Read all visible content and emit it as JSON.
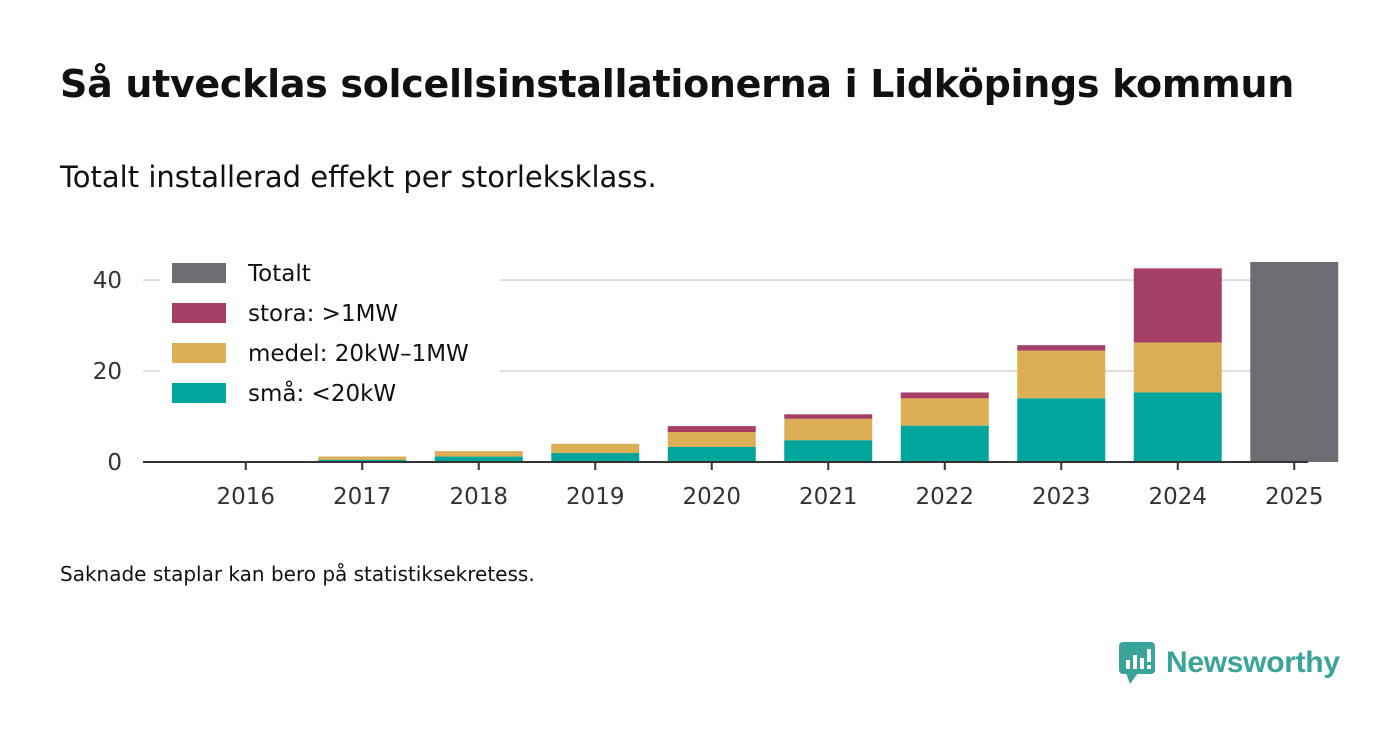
{
  "title": "Så utvecklas solcellsinstallationerna i Lidköpings kommun",
  "subtitle": "Totalt installerad effekt per storleksklass.",
  "note": "Saknade staplar kan bero på statistiksekretess.",
  "brand": {
    "name": "Newsworthy",
    "color": "#3aa39a",
    "icon": "newsworthy-logo-icon"
  },
  "chart_data": {
    "type": "bar",
    "stacked": true,
    "categories": [
      "2016",
      "2017",
      "2018",
      "2019",
      "2020",
      "2021",
      "2022",
      "2023",
      "2024",
      "2025"
    ],
    "series": [
      {
        "name": "små: <20kW",
        "color": "#00a59b",
        "values": [
          0.1,
          0.5,
          1.2,
          2.0,
          3.3,
          4.8,
          8.0,
          14.0,
          15.3,
          null
        ]
      },
      {
        "name": "medel: 20kW–1MW",
        "color": "#dcaf57",
        "values": [
          0.0,
          0.7,
          1.2,
          2.0,
          3.3,
          4.7,
          6.0,
          10.5,
          11.0,
          null
        ]
      },
      {
        "name": "stora: >1MW",
        "color": "#a53f66",
        "values": [
          0.0,
          0.0,
          0.0,
          0.0,
          1.3,
          1.0,
          1.3,
          1.2,
          16.3,
          null
        ]
      },
      {
        "name": "Totalt",
        "color": "#6e6d73",
        "values": [
          null,
          null,
          null,
          null,
          null,
          null,
          null,
          null,
          null,
          44.0
        ]
      }
    ],
    "legend_order": [
      "Totalt",
      "stora: >1MW",
      "medel: 20kW–1MW",
      "små: <20kW"
    ],
    "legend_position": "top-left",
    "yticks": [
      0,
      20,
      40
    ],
    "ylim": [
      0,
      44
    ],
    "grid": true,
    "xlabel": "",
    "ylabel": ""
  }
}
